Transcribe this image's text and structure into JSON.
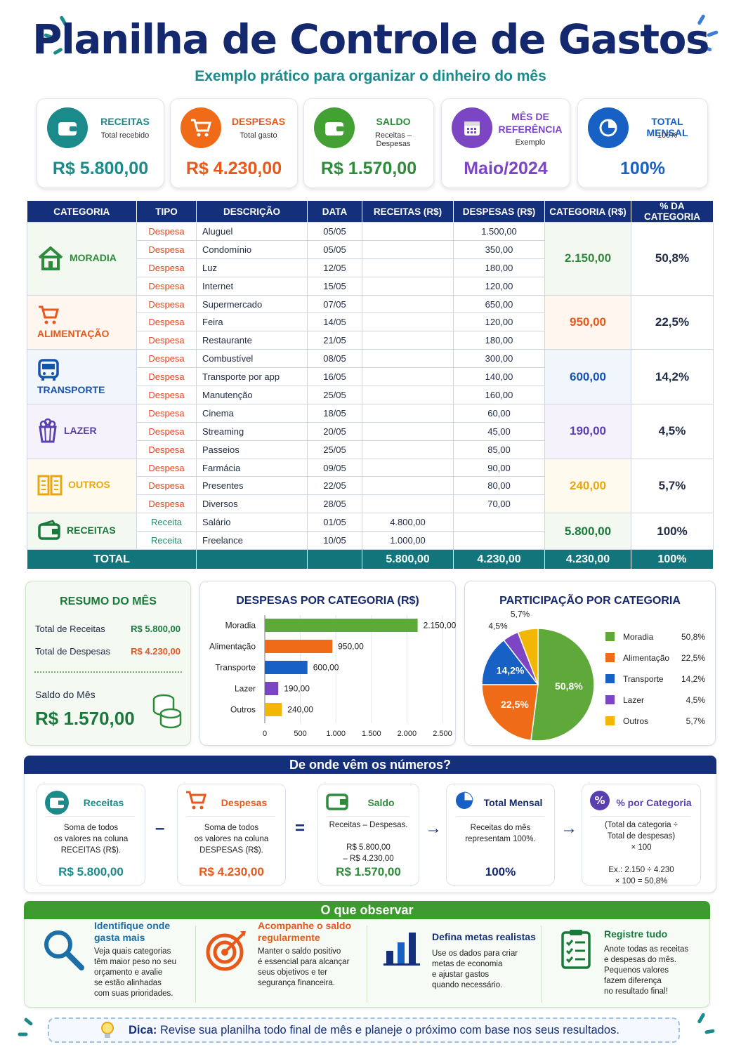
{
  "header": {
    "title": "Planilha de Controle de Gastos",
    "subtitle": "Exemplo prático para organizar o dinheiro do mês"
  },
  "cards": [
    {
      "label": "RECEITAS",
      "sub": "Total recebido",
      "value": "R$ 5.800,00",
      "color": "#1b8a8a",
      "icon": "wallet-icon"
    },
    {
      "label": "DESPESAS",
      "sub": "Total gasto",
      "value": "R$ 4.230,00",
      "color": "#ef6b17",
      "icon": "cart-icon"
    },
    {
      "label": "SALDO",
      "sub": "Receitas – Despesas",
      "value": "R$ 1.570,00",
      "color": "#43a033",
      "icon": "wallet-icon"
    },
    {
      "label": "MÊS DE REFERÊNCIA",
      "sub": "Exemplo",
      "value": "Maio/2024",
      "color": "#7b45c4",
      "icon": "calendar-icon"
    },
    {
      "label": "TOTAL MENSAL",
      "sub": "100%",
      "value": "100%",
      "color": "#1760c4",
      "icon": "pie-icon"
    }
  ],
  "table": {
    "headers": [
      "CATEGORIA",
      "TIPO",
      "DESCRIÇÃO",
      "DATA",
      "RECEITAS (R$)",
      "DESPESAS (R$)",
      "CATEGORIA (R$)",
      "% DA CATEGORIA"
    ],
    "groups": [
      {
        "name": "MORADIA",
        "color": "#2e8b3c",
        "total": "2.150,00",
        "pct": "50,8%",
        "rows": [
          [
            "Despesa",
            "Aluguel",
            "05/05",
            "",
            "1.500,00"
          ],
          [
            "Despesa",
            "Condomínio",
            "05/05",
            "",
            "350,00"
          ],
          [
            "Despesa",
            "Luz",
            "12/05",
            "",
            "180,00"
          ],
          [
            "Despesa",
            "Internet",
            "15/05",
            "",
            "120,00"
          ]
        ]
      },
      {
        "name": "ALIMENTAÇÃO",
        "color": "#e8581a",
        "total": "950,00",
        "pct": "22,5%",
        "rows": [
          [
            "Despesa",
            "Supermercado",
            "07/05",
            "",
            "650,00"
          ],
          [
            "Despesa",
            "Feira",
            "14/05",
            "",
            "120,00"
          ],
          [
            "Despesa",
            "Restaurante",
            "21/05",
            "",
            "180,00"
          ]
        ]
      },
      {
        "name": "TRANSPORTE",
        "color": "#1653b0",
        "total": "600,00",
        "pct": "14,2%",
        "rows": [
          [
            "Despesa",
            "Combustível",
            "08/05",
            "",
            "300,00"
          ],
          [
            "Despesa",
            "Transporte por app",
            "16/05",
            "",
            "140,00"
          ],
          [
            "Despesa",
            "Manutenção",
            "25/05",
            "",
            "160,00"
          ]
        ]
      },
      {
        "name": "LAZER",
        "color": "#5a3fb0",
        "total": "190,00",
        "pct": "4,5%",
        "rows": [
          [
            "Despesa",
            "Cinema",
            "18/05",
            "",
            "60,00"
          ],
          [
            "Despesa",
            "Streaming",
            "20/05",
            "",
            "45,00"
          ],
          [
            "Despesa",
            "Passeios",
            "25/05",
            "",
            "85,00"
          ]
        ]
      },
      {
        "name": "OUTROS",
        "color": "#e8a612",
        "total": "240,00",
        "pct": "5,7%",
        "rows": [
          [
            "Despesa",
            "Farmácia",
            "09/05",
            "",
            "90,00"
          ],
          [
            "Despesa",
            "Presentes",
            "22/05",
            "",
            "80,00"
          ],
          [
            "Despesa",
            "Diversos",
            "28/05",
            "",
            "70,00"
          ]
        ]
      },
      {
        "name": "RECEITAS",
        "color": "#1a7a3c",
        "total": "5.800,00",
        "pct": "100%",
        "rows": [
          [
            "Receita",
            "Salário",
            "01/05",
            "4.800,00",
            ""
          ],
          [
            "Receita",
            "Freelance",
            "10/05",
            "1.000,00",
            ""
          ]
        ]
      }
    ],
    "total": {
      "label": "TOTAL",
      "receitas": "5.800,00",
      "despesas": "4.230,00",
      "categoria": "4.230,00",
      "pct": "100%"
    }
  },
  "resumo": {
    "title": "RESUMO DO MÊS",
    "receitas_label": "Total de Receitas",
    "receitas": "R$ 5.800,00",
    "despesas_label": "Total de Despesas",
    "despesas": "R$ 4.230,00",
    "saldo_label": "Saldo do Mês",
    "saldo": "R$ 1.570,00"
  },
  "chart_data": [
    {
      "type": "bar",
      "title": "DESPESAS POR CATEGORIA (R$)",
      "categories": [
        "Moradia",
        "Alimentação",
        "Transporte",
        "Lazer",
        "Outros"
      ],
      "values": [
        2150,
        950,
        600,
        190,
        240
      ],
      "value_labels": [
        "2.150,00",
        "950,00",
        "600,00",
        "190,00",
        "240,00"
      ],
      "colors": [
        "#5fa83a",
        "#ef6b17",
        "#1760c4",
        "#7b45c4",
        "#f2b705"
      ],
      "xlim": [
        0,
        2500
      ],
      "xticks": [
        "0",
        "500",
        "1.000",
        "1.500",
        "2.000",
        "2.500"
      ],
      "orientation": "horizontal",
      "grid": true
    },
    {
      "type": "pie",
      "title": "PARTICIPAÇÃO POR CATEGORIA",
      "categories": [
        "Moradia",
        "Alimentação",
        "Transporte",
        "Lazer",
        "Outros"
      ],
      "values": [
        50.8,
        22.5,
        14.2,
        4.5,
        5.7
      ],
      "labels": [
        "50,8%",
        "22,5%",
        "14,2%",
        "4,5%",
        "5,7%"
      ],
      "colors": [
        "#5fa83a",
        "#ef6b17",
        "#1760c4",
        "#7b45c4",
        "#f2b705"
      ],
      "legend": "right"
    }
  ],
  "formula": {
    "title": "De onde vêm os números?",
    "boxes": [
      {
        "title": "Receitas",
        "desc": "Soma de todos\nos valores na coluna\nRECEITAS (R$).",
        "value": "R$ 5.800,00",
        "color": "#1b8a8a"
      },
      {
        "title": "Despesas",
        "desc": "Soma de todos\nos valores na coluna\nDESPESAS (R$).",
        "value": "R$ 4.230,00",
        "color": "#e8581a"
      },
      {
        "title": "Saldo",
        "desc": "Receitas – Despesas.\n\nR$ 5.800,00\n– R$ 4.230,00",
        "value": "R$ 1.570,00",
        "color": "#2e8b3c"
      },
      {
        "title": "Total Mensal",
        "desc": "Receitas do mês\nrepresentam 100%.",
        "value": "100%",
        "color": "#14286e"
      },
      {
        "title": "% por Categoria",
        "desc": "(Total da categoria ÷\nTotal de despesas)\n× 100\n\nEx.: 2.150 ÷ 4.230\n× 100 = 50,8%",
        "value": "",
        "color": "#5a3fb0"
      }
    ],
    "ops": [
      "–",
      "=",
      "→",
      "→"
    ]
  },
  "observar": {
    "title": "O que observar",
    "items": [
      {
        "title": "Identifique onde\ngasta mais",
        "desc": "Veja quais categorias\ntêm maior peso no seu\norçamento e avalie\nse estão alinhadas\ncom suas prioridades.",
        "color": "#1b6fa8"
      },
      {
        "title": "Acompanhe o saldo\nregularmente",
        "desc": "Manter o saldo positivo\né essencial para alcançar\nseus objetivos e ter\nsegurança financeira.",
        "color": "#e8581a"
      },
      {
        "title": "Defina metas realistas",
        "desc": "Use os dados para criar\nmetas de economia\ne ajustar gastos\nquando necessário.",
        "color": "#14307a"
      },
      {
        "title": "Registre tudo",
        "desc": "Anote todas as receitas\ne despesas do mês.\nPequenos valores\nfazem diferença\nno resultado final!",
        "color": "#1a7a3c"
      }
    ]
  },
  "dica": {
    "label": "Dica:",
    "text": "Revise sua planilha todo final de mês e planeje o próximo com base nos seus resultados."
  }
}
